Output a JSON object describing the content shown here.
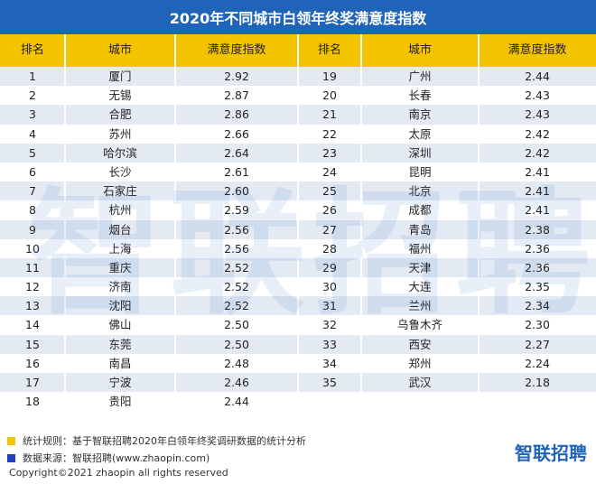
{
  "title": "2020年不同城市白领年终奖满意度指数",
  "headers": [
    "排名",
    "城市",
    "满意度指数",
    "排名",
    "城市",
    "满意度指数"
  ],
  "watermark": "智联招聘",
  "rows": [
    {
      "r1": "1",
      "c1": "厦门",
      "v1": "2.92",
      "r2": "19",
      "c2": "广州",
      "v2": "2.44"
    },
    {
      "r1": "2",
      "c1": "无锡",
      "v1": "2.87",
      "r2": "20",
      "c2": "长春",
      "v2": "2.43"
    },
    {
      "r1": "3",
      "c1": "合肥",
      "v1": "2.86",
      "r2": "21",
      "c2": "南京",
      "v2": "2.43"
    },
    {
      "r1": "4",
      "c1": "苏州",
      "v1": "2.66",
      "r2": "22",
      "c2": "太原",
      "v2": "2.42"
    },
    {
      "r1": "5",
      "c1": "哈尔滨",
      "v1": "2.64",
      "r2": "23",
      "c2": "深圳",
      "v2": "2.42"
    },
    {
      "r1": "6",
      "c1": "长沙",
      "v1": "2.61",
      "r2": "24",
      "c2": "昆明",
      "v2": "2.41"
    },
    {
      "r1": "7",
      "c1": "石家庄",
      "v1": "2.60",
      "r2": "25",
      "c2": "北京",
      "v2": "2.41"
    },
    {
      "r1": "8",
      "c1": "杭州",
      "v1": "2.59",
      "r2": "26",
      "c2": "成都",
      "v2": "2.41"
    },
    {
      "r1": "9",
      "c1": "烟台",
      "v1": "2.56",
      "r2": "27",
      "c2": "青岛",
      "v2": "2.38"
    },
    {
      "r1": "10",
      "c1": "上海",
      "v1": "2.56",
      "r2": "28",
      "c2": "福州",
      "v2": "2.36"
    },
    {
      "r1": "11",
      "c1": "重庆",
      "v1": "2.52",
      "r2": "29",
      "c2": "天津",
      "v2": "2.36"
    },
    {
      "r1": "12",
      "c1": "济南",
      "v1": "2.52",
      "r2": "30",
      "c2": "大连",
      "v2": "2.35"
    },
    {
      "r1": "13",
      "c1": "沈阳",
      "v1": "2.52",
      "r2": "31",
      "c2": "兰州",
      "v2": "2.34"
    },
    {
      "r1": "14",
      "c1": "佛山",
      "v1": "2.50",
      "r2": "32",
      "c2": "乌鲁木齐",
      "v2": "2.30"
    },
    {
      "r1": "15",
      "c1": "东莞",
      "v1": "2.50",
      "r2": "33",
      "c2": "西安",
      "v2": "2.27"
    },
    {
      "r1": "16",
      "c1": "南昌",
      "v1": "2.48",
      "r2": "34",
      "c2": "郑州",
      "v2": "2.24"
    },
    {
      "r1": "17",
      "c1": "宁波",
      "v1": "2.46",
      "r2": "35",
      "c2": "武汉",
      "v2": "2.18"
    },
    {
      "r1": "18",
      "c1": "贵阳",
      "v1": "2.44",
      "r2": "",
      "c2": "",
      "v2": ""
    }
  ],
  "footer": {
    "note1": "统计规则：基于智联招聘2020年白领年终奖调研数据的统计分析",
    "note2": "数据来源：智联招聘(www.zhaopin.com)",
    "logo": "智联招聘",
    "copyright": "Copyright©2021 zhaopin all rights reserved"
  },
  "colors": {
    "title_bg": "#1f64b8",
    "header_bg": "#f5c400",
    "stripe": "#e4eaf3",
    "note1_square": "#f5c400",
    "note2_square": "#1f3fbf"
  }
}
